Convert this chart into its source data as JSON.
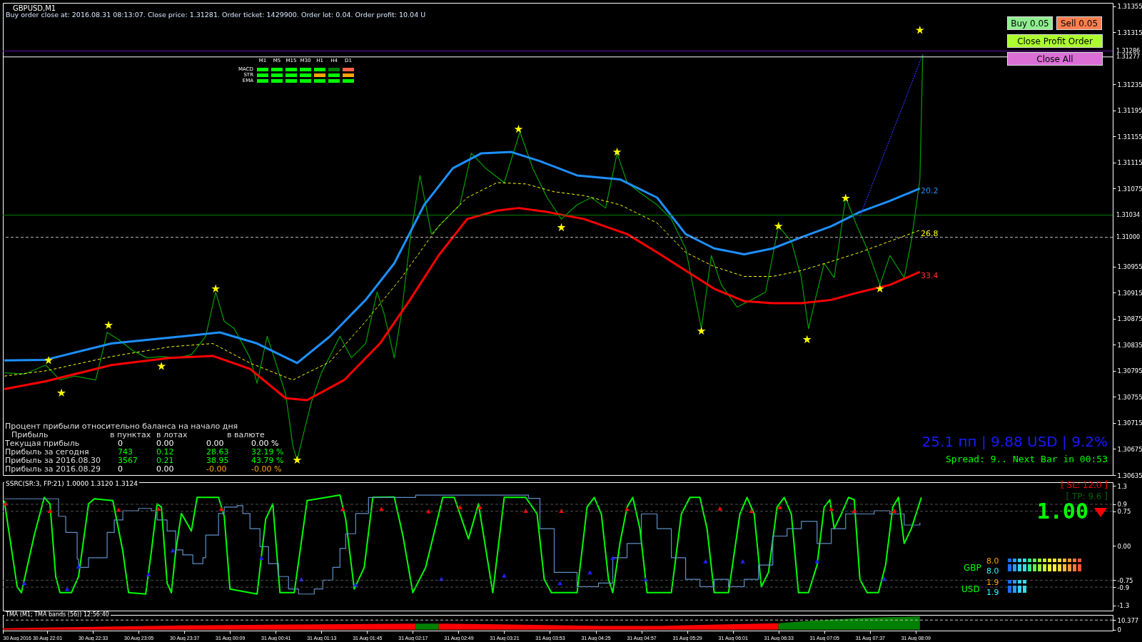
{
  "chart_data": [
    {
      "type": "line",
      "title": "GBPUSD,M1",
      "xlim": [
        "2016-08-30T21:30",
        "2016-08-31T10:27"
      ],
      "ylim": [
        1.30635,
        1.3136
      ],
      "yticks": [
        1.30635,
        1.30675,
        1.30715,
        1.30755,
        1.30795,
        1.30835,
        1.30875,
        1.30915,
        1.30955,
        1.31075,
        1.31115,
        1.31155,
        1.31195,
        1.31235,
        1.31315,
        1.31355
      ],
      "tick_labels": "y",
      "series": [
        {
          "color": "#00a000",
          "x": [
            "2016-08-30T21:31",
            "2016-08-30T21:45",
            "2016-08-30T22:00",
            "2016-08-30T22:10",
            "2016-08-30T22:20",
            "2016-08-30T22:35",
            "2016-08-30T22:43",
            "2016-08-30T22:51",
            "2016-08-30T23:01",
            "2016-08-30T23:11",
            "2016-08-30T23:21",
            "2016-08-30T23:32",
            "2016-08-30T23:42",
            "2016-08-30T23:52",
            "2016-08-30T23:59",
            "2016-08-31T00:05",
            "2016-08-31T00:12",
            "2016-08-31T00:23",
            "2016-08-31T00:28",
            "2016-08-31T00:35",
            "2016-08-31T00:40",
            "2016-08-31T00:48",
            "2016-08-31T00:53",
            "2016-08-31T00:56",
            "2016-08-31T01:01",
            "2016-08-31T01:06",
            "2016-08-31T01:13",
            "2016-08-31T01:26",
            "2016-08-31T01:34",
            "2016-08-31T01:44",
            "2016-08-31T01:52",
            "2016-08-31T01:57",
            "2016-08-31T02:04",
            "2016-08-31T02:09",
            "2016-08-31T02:15",
            "2016-08-31T02:22",
            "2016-08-31T02:30",
            "2016-08-31T02:40",
            "2016-08-31T02:50",
            "2016-08-31T02:58",
            "2016-08-31T03:08",
            "2016-08-31T03:21",
            "2016-08-31T03:32",
            "2016-08-31T03:41",
            "2016-08-31T03:51",
            "2016-08-31T04:01",
            "2016-08-31T04:12",
            "2016-08-31T04:22",
            "2016-08-31T04:32",
            "2016-08-31T04:40",
            "2016-08-31T04:47",
            "2016-08-31T04:57",
            "2016-08-31T05:08",
            "2016-08-31T05:18",
            "2016-08-31T05:28",
            "2016-08-31T05:36",
            "2016-08-31T05:39",
            "2016-08-31T05:46",
            "2016-08-31T05:53",
            "2016-08-31T06:04",
            "2016-08-31T06:14",
            "2016-08-31T06:24",
            "2016-08-31T06:33",
            "2016-08-31T06:42",
            "2016-08-31T06:49",
            "2016-08-31T06:54",
            "2016-08-31T07:00",
            "2016-08-31T07:05",
            "2016-08-31T07:12",
            "2016-08-31T07:20",
            "2016-08-31T07:28",
            "2016-08-31T07:35",
            "2016-08-31T07:44",
            "2016-08-31T07:51",
            "2016-08-31T08:01",
            "2016-08-31T08:06",
            "2016-08-31T08:12",
            "2016-08-31T08:14"
          ],
          "values": [
            1.30792,
            1.3079,
            1.30804,
            1.30781,
            1.30787,
            1.30781,
            1.30854,
            1.30843,
            1.30826,
            1.30815,
            1.30817,
            1.30815,
            1.3082,
            1.30848,
            1.30916,
            1.30871,
            1.3086,
            1.30815,
            1.30776,
            1.30848,
            1.30815,
            1.30759,
            1.3068,
            1.30658,
            1.30703,
            1.30747,
            1.30792,
            1.30848,
            1.30815,
            1.30837,
            1.30916,
            1.30882,
            1.30815,
            1.30882,
            1.30994,
            1.31095,
            1.31005,
            1.31028,
            1.3105,
            1.31129,
            1.31106,
            1.31084,
            1.31162,
            1.31106,
            1.31061,
            1.31028,
            1.3105,
            1.31061,
            1.31045,
            1.31129,
            1.31084,
            1.31067,
            1.3105,
            1.31028,
            1.30983,
            1.30893,
            1.3086,
            1.30972,
            1.30927,
            1.30893,
            1.30904,
            1.30916,
            1.31017,
            1.30994,
            1.30938,
            1.3086,
            1.30916,
            1.3096,
            1.30938,
            1.31061,
            1.31017,
            1.30983,
            1.30927,
            1.30972,
            1.30938,
            1.30994,
            1.31089,
            1.31281
          ]
        },
        {
          "color": "#1e90ff",
          "x": [
            "2016-08-30T21:31",
            "2016-08-30T22:00",
            "2016-08-30T22:46",
            "2016-08-30T23:27",
            "2016-08-31T00:02",
            "2016-08-31T00:28",
            "2016-08-31T00:56",
            "2016-08-31T01:19",
            "2016-08-31T01:44",
            "2016-08-31T02:04",
            "2016-08-31T02:25",
            "2016-08-31T02:45",
            "2016-08-31T03:05",
            "2016-08-31T03:26",
            "2016-08-31T03:46",
            "2016-08-31T04:12",
            "2016-08-31T04:42",
            "2016-08-31T05:08",
            "2016-08-31T05:28",
            "2016-08-31T05:48",
            "2016-08-31T06:09",
            "2016-08-31T06:29",
            "2016-08-31T06:49",
            "2016-08-31T07:10",
            "2016-08-31T07:30",
            "2016-08-31T07:51",
            "2016-08-31T08:12"
          ],
          "values": [
            1.30811,
            1.30812,
            1.30837,
            1.30846,
            1.30854,
            1.30837,
            1.30807,
            1.30848,
            1.30904,
            1.3096,
            1.3105,
            1.31106,
            1.31129,
            1.31131,
            1.31117,
            1.31095,
            1.31089,
            1.31061,
            1.31005,
            1.30983,
            1.30974,
            1.30983,
            1.31,
            1.31017,
            1.31039,
            1.31056,
            1.31075
          ]
        },
        {
          "color": "#ff0000",
          "x": [
            "2016-08-30T21:31",
            "2016-08-30T22:00",
            "2016-08-30T22:46",
            "2016-08-30T23:27",
            "2016-08-30T23:57",
            "2016-08-31T00:23",
            "2016-08-31T00:48",
            "2016-08-31T01:03",
            "2016-08-31T01:29",
            "2016-08-31T01:54",
            "2016-08-31T02:15",
            "2016-08-31T02:35",
            "2016-08-31T02:55",
            "2016-08-31T03:16",
            "2016-08-31T03:31",
            "2016-08-31T03:51",
            "2016-08-31T04:17",
            "2016-08-31T04:47",
            "2016-08-31T05:08",
            "2016-08-31T05:28",
            "2016-08-31T05:48",
            "2016-08-31T06:09",
            "2016-08-31T06:29",
            "2016-08-31T06:49",
            "2016-08-31T07:10",
            "2016-08-31T07:30",
            "2016-08-31T07:51",
            "2016-08-31T08:12"
          ],
          "values": [
            1.30767,
            1.30779,
            1.30804,
            1.30815,
            1.30818,
            1.30798,
            1.30753,
            1.3075,
            1.30781,
            1.30837,
            1.30904,
            1.30972,
            1.31028,
            1.31041,
            1.31045,
            1.31039,
            1.31028,
            1.31005,
            1.30977,
            1.30949,
            1.30921,
            1.30902,
            1.30899,
            1.30899,
            1.30904,
            1.30916,
            1.30927,
            1.30947
          ]
        },
        {
          "color": "#ffff00",
          "line_style": "dashed",
          "x": [
            "2016-08-30T21:31",
            "2016-08-30T22:00",
            "2016-08-30T22:46",
            "2016-08-30T23:27",
            "2016-08-30T23:57",
            "2016-08-31T00:23",
            "2016-08-31T00:53",
            "2016-08-31T01:19",
            "2016-08-31T01:44",
            "2016-08-31T02:09",
            "2016-08-31T02:35",
            "2016-08-31T02:55",
            "2016-08-31T03:16",
            "2016-08-31T03:36",
            "2016-08-31T03:56",
            "2016-08-31T04:17",
            "2016-08-31T04:42",
            "2016-08-31T05:08",
            "2016-08-31T05:28",
            "2016-08-31T05:48",
            "2016-08-31T06:09",
            "2016-08-31T06:29",
            "2016-08-31T06:49",
            "2016-08-31T07:10",
            "2016-08-31T07:30",
            "2016-08-31T07:51",
            "2016-08-31T08:12"
          ],
          "values": [
            1.30787,
            1.30795,
            1.30817,
            1.30832,
            1.30837,
            1.30807,
            1.30781,
            1.30809,
            1.30871,
            1.30938,
            1.31017,
            1.31061,
            1.31084,
            1.31082,
            1.3107,
            1.31064,
            1.3105,
            1.31022,
            1.30977,
            1.30955,
            1.3094,
            1.3094,
            1.30949,
            1.30963,
            1.30977,
            1.30994,
            1.31011
          ]
        },
        {
          "color": "#3030ff",
          "line_style": "dotted",
          "x": [
            "2016-08-31T07:30",
            "2016-08-31T08:14"
          ],
          "values": [
            1.31032,
            1.31281
          ]
        },
        {
          "type": "scatter",
          "marker": "star",
          "color": "#ffff00",
          "x": [
            "2016-08-30T22:02",
            "2016-08-30T22:11",
            "2016-08-30T22:44",
            "2016-08-30T23:21",
            "2016-08-30T23:59",
            "2016-08-31T00:56",
            "2016-08-31T03:31",
            "2016-08-31T04:01",
            "2016-08-31T04:40",
            "2016-08-31T05:39",
            "2016-08-31T06:33",
            "2016-08-31T06:53",
            "2016-08-31T07:20",
            "2016-08-31T07:44",
            "2016-08-31T08:12"
          ],
          "values": [
            1.30811,
            1.30761,
            1.30865,
            1.30802,
            1.30921,
            1.30658,
            1.31166,
            1.31015,
            1.31131,
            1.30856,
            1.31017,
            1.30843,
            1.3106,
            1.30921,
            1.31318
          ]
        }
      ],
      "ref_lines": [
        {
          "axis": "y",
          "value": 1.31286,
          "label": "1.31286",
          "color": "#6a0dad"
        },
        {
          "axis": "y",
          "value": 1.31277,
          "label": "1.31277",
          "color": "#ffffff"
        },
        {
          "axis": "y",
          "value": 1.31034,
          "label": "1.31034",
          "color": "#008000"
        },
        {
          "axis": "y",
          "value": 1.31,
          "label": "1.31000",
          "color": "#c0c0c0",
          "line_style": "dashed"
        }
      ],
      "annotations": [
        "Buy order close at: 2016.08.31 08:13:07. Close price: 1.31281. Order ticket: 1429900. Order lot: 0.04. Order profit: 10.04 U",
        "Buy 0.05",
        "Sell 0.05",
        "Close Profit Order",
        "Close All",
        "M1",
        "M5",
        "M15",
        "M30",
        "H1",
        "H4",
        "D1",
        "MACD",
        "STR",
        "EMA",
        "Процент прибыли относительно баланса на начало дня",
        "Прибыль",
        "в пунктах",
        "в лотах",
        "в валюте",
        "Текущая прибыль",
        "0",
        "0.00",
        "0.00",
        "0.00 %",
        "Прибыль за сегодня",
        "743",
        "0.12",
        "28.63",
        "32.19 %",
        "Прибыль за 2016.08.30",
        "3567",
        "0.21",
        "38.95",
        "43.79 %",
        "Прибыль за 2016.08.29",
        "0",
        "0.00",
        "-0.00",
        "-0.00 %",
        "25.1 пп | 9.88 USD | 9.2%",
        "Spread: 9.. Next Bar in 00:53",
        "20.2",
        "26.8",
        "33.4"
      ]
    },
    {
      "type": "line",
      "title": "SSRC(SR:3, FP:21) 1.0000 1.3120 1.3124",
      "xlim": [
        "2016-08-30T21:30",
        "2016-08-31T10:27"
      ],
      "ylim": [
        -1.41,
        1.38
      ],
      "yticks": [
        1.3,
        0.9,
        0.75,
        {
          "value": 0,
          "label": "0.00"
        },
        -0.75,
        -0.9,
        -1.3
      ],
      "tick_labels": "y",
      "series": [
        {
          "color": "#00ff00",
          "x": [
            "2016-08-30T21:31",
            "2016-08-30T21:40",
            "2016-08-30T21:43",
            "2016-08-30T21:52",
            "2016-08-30T21:59",
            "2016-08-30T22:03",
            "2016-08-30T22:07",
            "2016-08-30T22:10",
            "2016-08-30T22:18",
            "2016-08-30T22:23",
            "2016-08-30T22:30",
            "2016-08-30T22:34",
            "2016-08-30T22:47",
            "2016-08-30T22:54",
            "2016-08-30T22:58",
            "2016-08-30T23:10",
            "2016-08-30T23:14",
            "2016-08-30T23:18",
            "2016-08-30T23:21",
            "2016-08-30T23:25",
            "2016-08-30T23:28",
            "2016-08-30T23:31",
            "2016-08-30T23:35",
            "2016-08-30T23:42",
            "2016-08-30T23:46",
            "2016-08-31T00:01",
            "2016-08-31T00:05",
            "2016-08-31T00:09",
            "2016-08-31T00:28",
            "2016-08-31T00:34",
            "2016-08-31T00:39",
            "2016-08-31T00:44",
            "2016-08-31T00:54",
            "2016-08-31T01:03",
            "2016-08-31T01:26",
            "2016-08-31T01:30",
            "2016-08-31T01:36",
            "2016-08-31T01:43",
            "2016-08-31T01:49",
            "2016-08-31T02:04",
            "2016-08-31T02:10",
            "2016-08-31T02:17",
            "2016-08-31T02:26",
            "2016-08-31T02:38",
            "2016-08-31T02:46",
            "2016-08-31T02:56",
            "2016-08-31T03:03",
            "2016-08-31T03:13",
            "2016-08-31T03:21",
            "2016-08-31T03:36",
            "2016-08-31T03:44",
            "2016-08-31T03:49",
            "2016-08-31T03:54",
            "2016-08-31T04:12",
            "2016-08-31T04:19",
            "2016-08-31T04:24",
            "2016-08-31T04:29",
            "2016-08-31T04:34",
            "2016-08-31T04:37",
            "2016-08-31T04:42",
            "2016-08-31T04:47",
            "2016-08-31T04:51",
            "2016-08-31T04:56",
            "2016-08-31T05:01",
            "2016-08-31T05:18",
            "2016-08-31T05:25",
            "2016-08-31T05:31",
            "2016-08-31T05:38",
            "2016-08-31T05:43",
            "2016-08-31T05:48",
            "2016-08-31T05:58",
            "2016-08-31T06:06",
            "2016-08-31T06:11",
            "2016-08-31T06:16",
            "2016-08-31T06:21",
            "2016-08-31T06:26",
            "2016-08-31T06:32",
            "2016-08-31T06:37",
            "2016-08-31T06:42",
            "2016-08-31T06:47",
            "2016-08-31T06:54",
            "2016-08-31T07:00",
            "2016-08-31T07:05",
            "2016-08-31T07:09",
            "2016-08-31T07:12",
            "2016-08-31T07:17",
            "2016-08-31T07:22",
            "2016-08-31T07:26",
            "2016-08-31T07:30",
            "2016-08-31T07:35",
            "2016-08-31T07:43",
            "2016-08-31T07:48",
            "2016-08-31T07:53",
            "2016-08-31T07:57",
            "2016-08-31T08:01",
            "2016-08-31T08:06",
            "2016-08-31T08:13"
          ],
          "values": [
            0.98,
            -0.89,
            -1.02,
            0.23,
            1.05,
            0.91,
            -0.67,
            -1.02,
            -1.02,
            -0.67,
            0.91,
            1.02,
            0.98,
            -0.12,
            -1.02,
            -1.05,
            -0.12,
            0.91,
            0.84,
            -0.81,
            -1.02,
            -0.12,
            0.7,
            0.32,
            1.05,
            1.05,
            0.64,
            -0.94,
            -1.05,
            0.58,
            0.91,
            -1.02,
            -1.02,
            0.98,
            1.1,
            0.58,
            -0.94,
            -0.47,
            1.05,
            1.06,
            0.23,
            -1.02,
            -0.47,
            1.05,
            1.05,
            0.15,
            0.91,
            -1.02,
            1.05,
            1.05,
            0.69,
            -0.73,
            -1.02,
            -1.02,
            0.84,
            1.05,
            0.69,
            -0.73,
            -1.02,
            0.05,
            0.84,
            1.05,
            0.37,
            -1.02,
            -1.02,
            0.69,
            1.05,
            1.05,
            0.37,
            -1.02,
            -1.02,
            0.69,
            1.05,
            0.69,
            -0.89,
            -0.58,
            0.84,
            1.05,
            0.69,
            -1.02,
            -1.02,
            -0.42,
            0.84,
            1.0,
            0.37,
            0.69,
            1.05,
            1.0,
            -0.73,
            -1.02,
            -1.02,
            -0.42,
            0.84,
            1.05,
            0.05,
            0.37,
            1.05
          ]
        },
        {
          "type": "step",
          "color": "#5f8fc8",
          "x": [
            "2016-08-30T21:31",
            "2016-08-30T22:06",
            "2016-08-30T22:09",
            "2016-08-30T22:14",
            "2016-08-30T22:22",
            "2016-08-30T22:23",
            "2016-08-30T22:30",
            "2016-08-30T22:43",
            "2016-08-30T22:48",
            "2016-08-30T22:54",
            "2016-08-30T23:05",
            "2016-08-30T23:14",
            "2016-08-30T23:18",
            "2016-08-30T23:25",
            "2016-08-30T23:31",
            "2016-08-30T23:36",
            "2016-08-30T23:43",
            "2016-08-30T23:50",
            "2016-08-30T23:52",
            "2016-08-31T00:01",
            "2016-08-31T00:05",
            "2016-08-31T00:14",
            "2016-08-31T00:18",
            "2016-08-31T00:23",
            "2016-08-31T00:30",
            "2016-08-31T00:36",
            "2016-08-31T00:43",
            "2016-08-31T00:50",
            "2016-08-31T00:57",
            "2016-08-31T01:08",
            "2016-08-31T01:14",
            "2016-08-31T01:21",
            "2016-08-31T01:26",
            "2016-08-31T01:30",
            "2016-08-31T01:37",
            "2016-08-31T01:46",
            "2016-08-31T02:19",
            "2016-08-31T03:17",
            "2016-08-31T03:38",
            "2016-08-31T03:46",
            "2016-08-31T03:56",
            "2016-08-31T04:12",
            "2016-08-31T04:27",
            "2016-08-31T04:37",
            "2016-08-31T04:47",
            "2016-08-31T04:57",
            "2016-08-31T05:08",
            "2016-08-31T05:18",
            "2016-08-31T05:28",
            "2016-08-31T05:38",
            "2016-08-31T05:48",
            "2016-08-31T05:58",
            "2016-08-31T06:09",
            "2016-08-31T06:19",
            "2016-08-31T06:29",
            "2016-08-31T06:39",
            "2016-08-31T06:49",
            "2016-08-31T07:00",
            "2016-08-31T07:10",
            "2016-08-31T07:20",
            "2016-08-31T07:30",
            "2016-08-31T07:40",
            "2016-08-31T07:51",
            "2016-08-31T08:01",
            "2016-08-31T08:12"
          ],
          "values": [
            1.02,
            1.02,
            0.64,
            0.29,
            -0.29,
            -0.47,
            -0.26,
            0.29,
            0.56,
            0.76,
            0.81,
            0.76,
            0.56,
            0.32,
            -0.09,
            -0.2,
            -0.39,
            -0.26,
            0.23,
            0.7,
            0.84,
            0.87,
            0.7,
            0.37,
            -0.02,
            -0.39,
            -0.67,
            -0.94,
            -1.05,
            -0.94,
            -0.75,
            -0.47,
            -0.06,
            0.26,
            0.7,
            1.05,
            1.1,
            1.1,
            1.03,
            0.37,
            -0.58,
            -0.89,
            -0.81,
            -0.26,
            0.05,
            0.69,
            0.37,
            -0.26,
            -0.73,
            -0.89,
            -0.73,
            -0.89,
            -0.73,
            -0.42,
            0.21,
            0.37,
            0.53,
            0.05,
            0.37,
            0.69,
            0.69,
            0.76,
            0.69,
            0.45,
            0.5
          ]
        },
        {
          "type": "scatter",
          "marker": "triangle",
          "color": "#ff0000",
          "x": [
            "2016-08-30T21:32",
            "2016-08-30T22:03",
            "2016-08-30T22:51",
            "2016-08-30T23:19",
            "2016-08-31T00:03",
            "2016-08-31T01:28",
            "2016-08-31T01:55",
            "2016-08-31T02:28",
            "2016-08-31T02:50",
            "2016-08-31T03:04",
            "2016-08-31T03:36",
            "2016-08-31T04:01",
            "2016-08-31T04:47",
            "2016-08-31T05:52",
            "2016-08-31T06:14",
            "2016-08-31T06:34",
            "2016-08-31T07:10",
            "2016-08-31T07:26",
            "2016-08-31T07:54"
          ],
          "values": [
            0.92,
            0.76,
            0.78,
            0.8,
            0.8,
            0.8,
            0.8,
            0.75,
            0.84,
            0.84,
            0.76,
            0.76,
            0.8,
            0.81,
            0.76,
            0.84,
            0.8,
            0.76,
            0.76
          ]
        },
        {
          "type": "scatter",
          "marker": "triangle",
          "color": "#2020ff",
          "x": [
            "2016-08-30T21:45",
            "2016-08-30T22:15",
            "2016-08-30T22:23",
            "2016-08-30T23:12",
            "2016-08-30T23:29",
            "2016-08-31T00:31",
            "2016-08-31T00:59",
            "2016-08-31T01:37",
            "2016-08-31T02:37",
            "2016-08-31T03:21",
            "2016-08-31T04:00",
            "2016-08-31T04:21",
            "2016-08-31T04:37",
            "2016-08-31T05:00",
            "2016-08-31T05:42",
            "2016-08-31T06:08",
            "2016-08-31T07:00",
            "2016-08-31T07:47"
          ],
          "values": [
            -0.81,
            -0.94,
            -0.45,
            -0.62,
            -0.1,
            -0.26,
            -0.73,
            -0.84,
            -0.72,
            -0.65,
            -0.81,
            -0.58,
            -0.26,
            -0.73,
            -0.34,
            -0.34,
            -0.34,
            -0.72
          ]
        }
      ],
      "ref_lines": [
        {
          "axis": "y",
          "value": 0.9,
          "color": "#505050",
          "line_style": "dashed"
        },
        {
          "axis": "y",
          "value": 0.75,
          "color": "#505050",
          "line_style": "dashed"
        },
        {
          "axis": "y",
          "value": -0.75,
          "color": "#505050",
          "line_style": "dashed"
        },
        {
          "axis": "y",
          "value": -0.9,
          "color": "#505050",
          "line_style": "dashed"
        }
      ],
      "annotations": [
        "[ SL: 12.0 ]",
        "[ TP: 9.6 ]",
        "1.00",
        "GBP",
        "8.0",
        "8.0",
        "USD",
        "1.9",
        "1.9"
      ]
    },
    {
      "type": "area",
      "title": "TMA (M1; TMA bands (56)) 12:56:40",
      "xlim": [
        "2016-08-30T21:30",
        "2016-08-31T10:27"
      ],
      "xticks": [
        {
          "value": "2016-08-30T21:30",
          "label": "30 Aug 2016"
        },
        {
          "value": "2016-08-30T22:01",
          "label": "30 Aug 22:01"
        },
        {
          "value": "2016-08-30T22:33",
          "label": "30 Aug 22:33"
        },
        {
          "value": "2016-08-30T23:05",
          "label": "30 Aug 23:05"
        },
        {
          "value": "2016-08-30T23:37",
          "label": "30 Aug 23:37"
        },
        {
          "value": "2016-08-31T00:09",
          "label": "31 Aug 00:09"
        },
        {
          "value": "2016-08-31T00:41",
          "label": "31 Aug 00:41"
        },
        {
          "value": "2016-08-31T01:13",
          "label": "31 Aug 01:13"
        },
        {
          "value": "2016-08-31T01:45",
          "label": "31 Aug 01:45"
        },
        {
          "value": "2016-08-31T02:17",
          "label": "31 Aug 02:17"
        },
        {
          "value": "2016-08-31T02:49",
          "label": "31 Aug 02:49"
        },
        {
          "value": "2016-08-31T03:21",
          "label": "31 Aug 03:21"
        },
        {
          "value": "2016-08-31T03:53",
          "label": "31 Aug 03:53"
        },
        {
          "value": "2016-08-31T04:25",
          "label": "31 Aug 04:25"
        },
        {
          "value": "2016-08-31T04:57",
          "label": "31 Aug 04:57"
        },
        {
          "value": "2016-08-31T05:29",
          "label": "31 Aug 05:29"
        },
        {
          "value": "2016-08-31T06:01",
          "label": "31 Aug 06:01"
        },
        {
          "value": "2016-08-31T06:33",
          "label": "31 Aug 06:33"
        },
        {
          "value": "2016-08-31T07:05",
          "label": "31 Aug 07:05"
        },
        {
          "value": "2016-08-31T07:37",
          "label": "31 Aug 07:37"
        },
        {
          "value": "2016-08-31T08:09",
          "label": "31 Aug 08:09"
        }
      ],
      "ylim": [
        -1,
        16
      ],
      "yticks": [
        10.377,
        0
      ],
      "series": [
        {
          "color": "#ff0000",
          "x": [
            "2016-08-30T21:30",
            "2016-08-30T22:10",
            "2016-08-30T22:50",
            "2016-08-30T23:30",
            "2016-08-31T00:10",
            "2016-08-31T00:50",
            "2016-08-31T01:30",
            "2016-08-31T02:19",
            "2016-08-31T02:27",
            "2016-08-31T02:35",
            "2016-08-31T03:10",
            "2016-08-31T03:50",
            "2016-08-31T04:30",
            "2016-08-31T05:10",
            "2016-08-31T05:50",
            "2016-08-31T06:33"
          ],
          "values": [
            1.5,
            2.5,
            3.5,
            4.5,
            5,
            5.5,
            6,
            6.5,
            null,
            6.5,
            6,
            5,
            4,
            4,
            5.5,
            7
          ]
        },
        {
          "color": "#008000",
          "x": [
            "2016-08-31T02:19",
            "2016-08-31T02:35",
            "2016-08-31T04:34",
            "2016-08-31T06:33",
            "2016-08-31T06:50",
            "2016-08-31T07:10",
            "2016-08-31T07:30",
            "2016-08-31T07:50",
            "2016-08-31T08:12"
          ],
          "values": [
            6.5,
            6.5,
            null,
            7,
            9,
            11,
            12.5,
            13.5,
            14.5
          ]
        }
      ],
      "ref_lines": [
        {
          "axis": "y",
          "value": 10.377,
          "color": "#c0c0c0",
          "line_style": "dashed"
        }
      ]
    }
  ]
}
